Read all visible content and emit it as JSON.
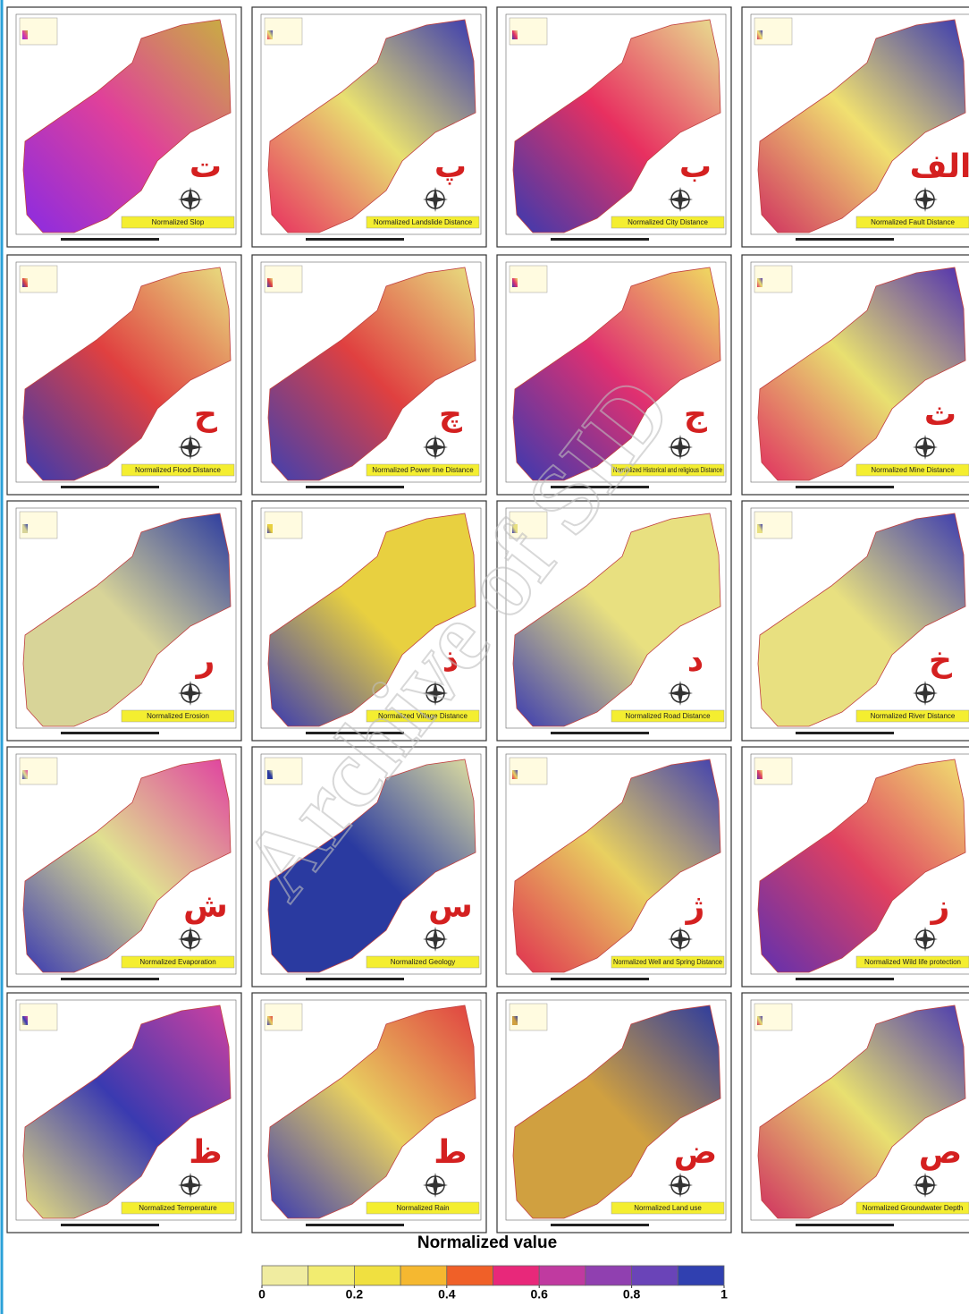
{
  "maps": [
    {
      "letter": "ت",
      "title": "Normalized Slop",
      "gradient": [
        "#8a2be2",
        "#e0409a",
        "#c8b040"
      ]
    },
    {
      "letter": "پ",
      "title": "Normalized Landslide Distance",
      "gradient": [
        "#e83060",
        "#e8e070",
        "#3a3ab0"
      ]
    },
    {
      "letter": "ب",
      "title": "Normalized City Distance",
      "gradient": [
        "#3a3ab0",
        "#e83060",
        "#e8e090"
      ]
    },
    {
      "letter": "الف",
      "title": "Normalized Fault Distance",
      "gradient": [
        "#d03060",
        "#f0e070",
        "#3a3ab0"
      ]
    },
    {
      "letter": "ح",
      "title": "Normalized Flood Distance",
      "gradient": [
        "#3a3ab0",
        "#e04040",
        "#e8e080"
      ]
    },
    {
      "letter": "چ",
      "title": "Normalized Power line Distance",
      "gradient": [
        "#4040b0",
        "#e04040",
        "#e8e080"
      ]
    },
    {
      "letter": "ج",
      "title": "Normalized Historical and religious Distance",
      "gradient": [
        "#3a3ab0",
        "#e03070",
        "#f0e060"
      ]
    },
    {
      "letter": "ث",
      "title": "Normalized Mine Distance",
      "gradient": [
        "#e03060",
        "#e8e070",
        "#5030b0"
      ]
    },
    {
      "letter": "ر",
      "title": "Normalized Erosion",
      "gradient": [
        "#d8d498",
        "#d8d498",
        "#2a3aa0"
      ]
    },
    {
      "letter": "ذ",
      "title": "Normalized Village Distance",
      "gradient": [
        "#3a3ab0",
        "#e8d040",
        "#e8d040"
      ]
    },
    {
      "letter": "د",
      "title": "Normalized Road Distance",
      "gradient": [
        "#3a3ab0",
        "#e8e080",
        "#e8e080"
      ]
    },
    {
      "letter": "خ",
      "title": "Normalized River Distance",
      "gradient": [
        "#e8e080",
        "#e8e080",
        "#3a3ab0"
      ]
    },
    {
      "letter": "ش",
      "title": "Normalized Evaporation",
      "gradient": [
        "#3a3ab0",
        "#e0e090",
        "#e040a0"
      ]
    },
    {
      "letter": "س",
      "title": "Normalized Geology",
      "gradient": [
        "#2a3aa0",
        "#2a3aa0",
        "#e0e0a0"
      ]
    },
    {
      "letter": "ژ",
      "title": "Normalized Well and Spring Distance",
      "gradient": [
        "#e03050",
        "#e8d060",
        "#4040b0"
      ]
    },
    {
      "letter": "ز",
      "title": "Normalized Wild life protection",
      "gradient": [
        "#6030b0",
        "#e04060",
        "#f0e070"
      ]
    },
    {
      "letter": "ظ",
      "title": "Normalized Temperature",
      "gradient": [
        "#e8e080",
        "#3a3ab0",
        "#d040a0"
      ]
    },
    {
      "letter": "ط",
      "title": "Normalized Rain",
      "gradient": [
        "#3a3ab0",
        "#e8d060",
        "#e04040"
      ]
    },
    {
      "letter": "ض",
      "title": "Normalized Land use",
      "gradient": [
        "#d0a040",
        "#d0a040",
        "#2a3aa0"
      ]
    },
    {
      "letter": "ص",
      "title": "Normalized Groundwater Depth",
      "gradient": [
        "#d03060",
        "#e8e070",
        "#4a3ab0"
      ]
    }
  ],
  "legend": {
    "title": "Normalized value",
    "range": [
      0,
      1
    ],
    "colors": [
      "#f0eca0",
      "#f2ec70",
      "#f0e040",
      "#f5b830",
      "#f06028",
      "#e8287a",
      "#c03aa0",
      "#9040b0",
      "#6a44b8",
      "#3040b0"
    ],
    "ticks": [
      0,
      0.2,
      0.4,
      0.6,
      0.8,
      1
    ]
  },
  "watermark": "Archive of SID"
}
